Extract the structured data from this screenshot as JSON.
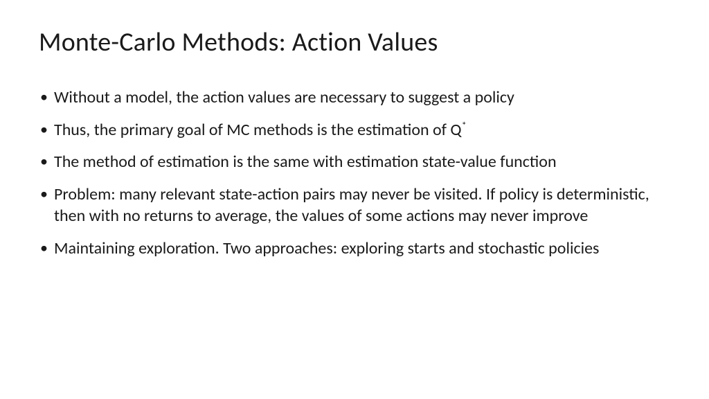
{
  "slide": {
    "title": "Monte-Carlo Methods: Action Values",
    "bullets": [
      "Without a model, the action values are necessary to suggest a policy",
      "Thus, the primary goal of MC methods is the estimation of Q",
      "The method of estimation is the same with estimation state-value function",
      "Problem: many relevant state-action pairs may never be visited. If policy is deterministic, then with no returns to average, the values of some actions may never improve",
      "Maintaining exploration. Two approaches: exploring starts and stochastic policies"
    ],
    "superscript_index": 1,
    "superscript_text": "*"
  },
  "style": {
    "background_color": "#ffffff",
    "text_color": "#1a1a1a",
    "title_fontsize": 38,
    "body_fontsize": 24,
    "font_family": "Calibri"
  }
}
